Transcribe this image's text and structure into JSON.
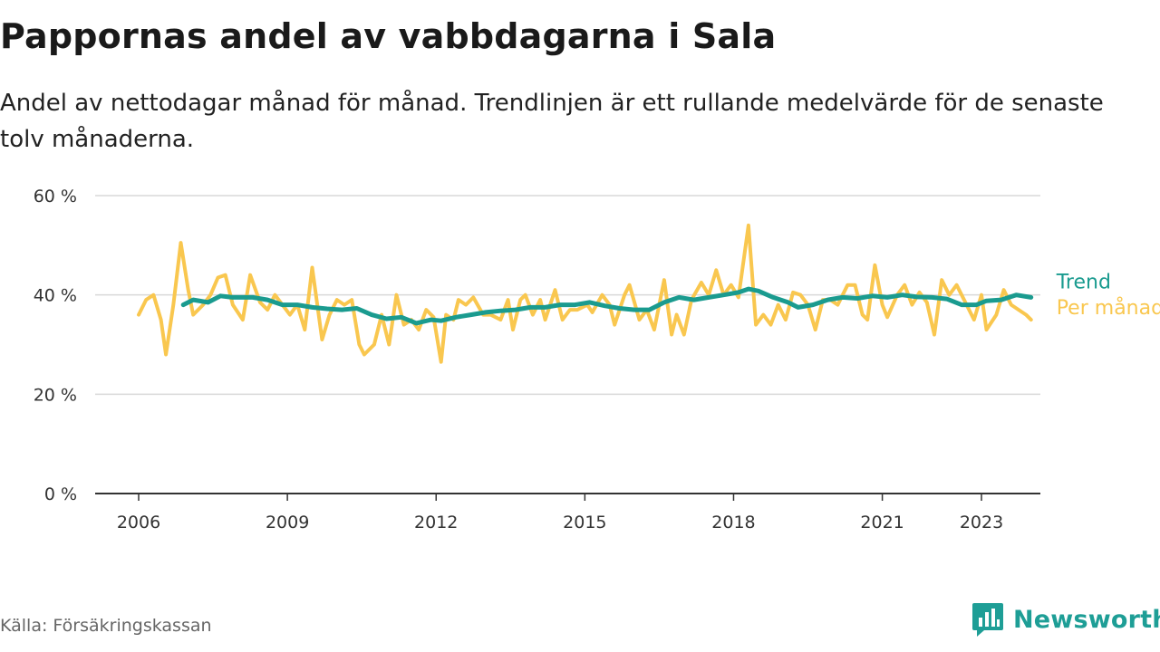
{
  "title": "Pappornas andel av vabbdagarna i Sala",
  "subtitle": "Andel av nettodagar månad för månad. Trendlinjen är ett rullande medelvärde för de senaste tolv månaderna.",
  "source": "Källa: Försäkringskassan",
  "brand": {
    "name": "Newsworthy",
    "icon": "newsworthy-logo-icon",
    "color": "#1e9e96"
  },
  "chart_data": {
    "type": "line",
    "x_unit": "year",
    "x_range": [
      2005.5,
      2024.0
    ],
    "ylim": [
      0,
      60
    ],
    "grid": true,
    "x_ticks": [
      2006,
      2009,
      2012,
      2015,
      2018,
      2021,
      2023
    ],
    "x_tick_labels": [
      "2006",
      "2009",
      "2012",
      "2015",
      "2018",
      "2021",
      "2023"
    ],
    "y_ticks": [
      0,
      20,
      40,
      60
    ],
    "y_tick_labels": [
      "0 %",
      "20 %",
      "40 %",
      "60 %"
    ],
    "series": [
      {
        "name": "Per månad",
        "color": "#f9c74f",
        "points": [
          [
            2006.0,
            36
          ],
          [
            2006.15,
            39
          ],
          [
            2006.3,
            40
          ],
          [
            2006.45,
            35
          ],
          [
            2006.55,
            28
          ],
          [
            2006.7,
            38
          ],
          [
            2006.85,
            50.5
          ],
          [
            2007.0,
            41
          ],
          [
            2007.1,
            36
          ],
          [
            2007.3,
            38
          ],
          [
            2007.45,
            40
          ],
          [
            2007.6,
            43.5
          ],
          [
            2007.75,
            44
          ],
          [
            2007.9,
            38
          ],
          [
            2008.1,
            35
          ],
          [
            2008.25,
            44
          ],
          [
            2008.45,
            38.5
          ],
          [
            2008.6,
            37
          ],
          [
            2008.75,
            40
          ],
          [
            2008.9,
            38
          ],
          [
            2009.05,
            36
          ],
          [
            2009.2,
            38
          ],
          [
            2009.35,
            33
          ],
          [
            2009.5,
            45.5
          ],
          [
            2009.7,
            31
          ],
          [
            2009.85,
            36
          ],
          [
            2010.0,
            39
          ],
          [
            2010.15,
            38
          ],
          [
            2010.3,
            39
          ],
          [
            2010.45,
            30
          ],
          [
            2010.55,
            28
          ],
          [
            2010.75,
            30
          ],
          [
            2010.9,
            36
          ],
          [
            2011.05,
            30
          ],
          [
            2011.2,
            40
          ],
          [
            2011.35,
            34
          ],
          [
            2011.5,
            35
          ],
          [
            2011.65,
            33
          ],
          [
            2011.8,
            37
          ],
          [
            2011.95,
            35.5
          ],
          [
            2012.1,
            26.5
          ],
          [
            2012.2,
            36
          ],
          [
            2012.35,
            35
          ],
          [
            2012.45,
            39
          ],
          [
            2012.6,
            38
          ],
          [
            2012.75,
            39.5
          ],
          [
            2012.95,
            36
          ],
          [
            2013.1,
            36
          ],
          [
            2013.3,
            35
          ],
          [
            2013.45,
            39
          ],
          [
            2013.55,
            33
          ],
          [
            2013.7,
            39
          ],
          [
            2013.8,
            40
          ],
          [
            2013.95,
            36
          ],
          [
            2014.1,
            39
          ],
          [
            2014.2,
            35
          ],
          [
            2014.4,
            41
          ],
          [
            2014.55,
            35
          ],
          [
            2014.7,
            37
          ],
          [
            2014.85,
            37
          ],
          [
            2015.05,
            38
          ],
          [
            2015.15,
            36.5
          ],
          [
            2015.35,
            40
          ],
          [
            2015.5,
            38
          ],
          [
            2015.6,
            34
          ],
          [
            2015.8,
            40
          ],
          [
            2015.9,
            42
          ],
          [
            2016.1,
            35
          ],
          [
            2016.25,
            37
          ],
          [
            2016.4,
            33
          ],
          [
            2016.6,
            43
          ],
          [
            2016.75,
            32
          ],
          [
            2016.85,
            36
          ],
          [
            2017.0,
            32
          ],
          [
            2017.15,
            39
          ],
          [
            2017.35,
            42.5
          ],
          [
            2017.5,
            40
          ],
          [
            2017.65,
            45
          ],
          [
            2017.8,
            40
          ],
          [
            2017.95,
            42
          ],
          [
            2018.1,
            39.5
          ],
          [
            2018.3,
            54
          ],
          [
            2018.45,
            34
          ],
          [
            2018.6,
            36
          ],
          [
            2018.75,
            34
          ],
          [
            2018.9,
            38
          ],
          [
            2019.05,
            35
          ],
          [
            2019.2,
            40.5
          ],
          [
            2019.35,
            40
          ],
          [
            2019.5,
            38
          ],
          [
            2019.65,
            33
          ],
          [
            2019.8,
            39
          ],
          [
            2019.95,
            39
          ],
          [
            2020.1,
            38
          ],
          [
            2020.3,
            42
          ],
          [
            2020.45,
            42
          ],
          [
            2020.6,
            36
          ],
          [
            2020.7,
            35
          ],
          [
            2020.85,
            46
          ],
          [
            2021.0,
            38
          ],
          [
            2021.1,
            35.5
          ],
          [
            2021.3,
            40
          ],
          [
            2021.45,
            42
          ],
          [
            2021.6,
            38
          ],
          [
            2021.75,
            40.5
          ],
          [
            2021.9,
            38.5
          ],
          [
            2022.05,
            32
          ],
          [
            2022.2,
            43
          ],
          [
            2022.35,
            40
          ],
          [
            2022.5,
            42
          ],
          [
            2022.7,
            38
          ],
          [
            2022.85,
            35
          ],
          [
            2023.0,
            40
          ],
          [
            2023.1,
            33
          ],
          [
            2023.3,
            36
          ],
          [
            2023.45,
            41
          ],
          [
            2023.6,
            38
          ],
          [
            2023.75,
            37
          ],
          [
            2023.9,
            36
          ],
          [
            2024.0,
            35
          ]
        ]
      },
      {
        "name": "Trend",
        "color": "#1a9b8f",
        "points": [
          [
            2006.9,
            38
          ],
          [
            2007.1,
            39
          ],
          [
            2007.4,
            38.5
          ],
          [
            2007.65,
            39.8
          ],
          [
            2007.9,
            39.5
          ],
          [
            2008.3,
            39.5
          ],
          [
            2008.6,
            39
          ],
          [
            2008.9,
            38
          ],
          [
            2009.2,
            38
          ],
          [
            2009.5,
            37.5
          ],
          [
            2009.8,
            37.2
          ],
          [
            2010.1,
            37
          ],
          [
            2010.4,
            37.3
          ],
          [
            2010.7,
            36
          ],
          [
            2011.0,
            35.2
          ],
          [
            2011.3,
            35.5
          ],
          [
            2011.6,
            34.3
          ],
          [
            2011.9,
            35
          ],
          [
            2012.1,
            34.8
          ],
          [
            2012.4,
            35.5
          ],
          [
            2012.7,
            36
          ],
          [
            2013.0,
            36.5
          ],
          [
            2013.3,
            36.8
          ],
          [
            2013.6,
            37
          ],
          [
            2013.9,
            37.5
          ],
          [
            2014.2,
            37.5
          ],
          [
            2014.5,
            38
          ],
          [
            2014.8,
            38
          ],
          [
            2015.1,
            38.5
          ],
          [
            2015.4,
            37.8
          ],
          [
            2015.7,
            37.3
          ],
          [
            2016.0,
            37
          ],
          [
            2016.3,
            37
          ],
          [
            2016.6,
            38.5
          ],
          [
            2016.9,
            39.5
          ],
          [
            2017.2,
            39
          ],
          [
            2017.5,
            39.5
          ],
          [
            2017.8,
            40
          ],
          [
            2018.1,
            40.5
          ],
          [
            2018.3,
            41.2
          ],
          [
            2018.5,
            40.8
          ],
          [
            2018.8,
            39.5
          ],
          [
            2019.1,
            38.5
          ],
          [
            2019.3,
            37.5
          ],
          [
            2019.6,
            38
          ],
          [
            2019.9,
            39
          ],
          [
            2020.2,
            39.5
          ],
          [
            2020.5,
            39.3
          ],
          [
            2020.8,
            39.8
          ],
          [
            2021.1,
            39.5
          ],
          [
            2021.4,
            40
          ],
          [
            2021.7,
            39.6
          ],
          [
            2022.0,
            39.5
          ],
          [
            2022.3,
            39.2
          ],
          [
            2022.6,
            38
          ],
          [
            2022.9,
            38
          ],
          [
            2023.1,
            38.8
          ],
          [
            2023.4,
            39
          ],
          [
            2023.7,
            40
          ],
          [
            2024.0,
            39.5
          ]
        ]
      }
    ]
  }
}
